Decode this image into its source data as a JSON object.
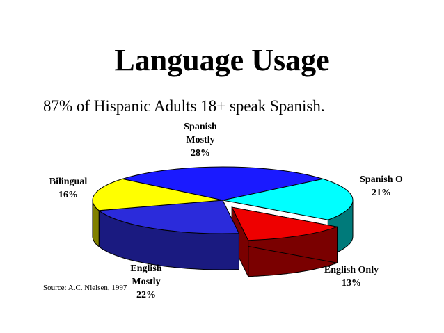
{
  "slide": {
    "title": "Language Usage",
    "subtitle": "87% of Hispanic Adults 18+ speak Spanish.",
    "source": "Source:  A.C. Nielsen, 1997"
  },
  "chart_data": {
    "type": "pie",
    "style": "3d-exploded",
    "slices": [
      {
        "label_lines": [
          "Spanish",
          "Mostly",
          "28%"
        ],
        "value": 28,
        "color": "#1a1aff",
        "side_color": "#0a0a80"
      },
      {
        "label_lines": [
          "Spanish O",
          "21%"
        ],
        "value": 21,
        "color": "#00ffff",
        "side_color": "#007a7a"
      },
      {
        "label_lines": [
          "English Only",
          "13%"
        ],
        "value": 13,
        "color": "#ee0000",
        "side_color": "#7a0000",
        "exploded": true
      },
      {
        "label_lines": [
          "English",
          "Mostly",
          "22%"
        ],
        "value": 22,
        "color": "#2b2bdb",
        "side_color": "#1a1a80"
      },
      {
        "label_lines": [
          "Bilingual",
          "16%"
        ],
        "value": 16,
        "color": "#ffff00",
        "side_color": "#808000"
      }
    ]
  }
}
